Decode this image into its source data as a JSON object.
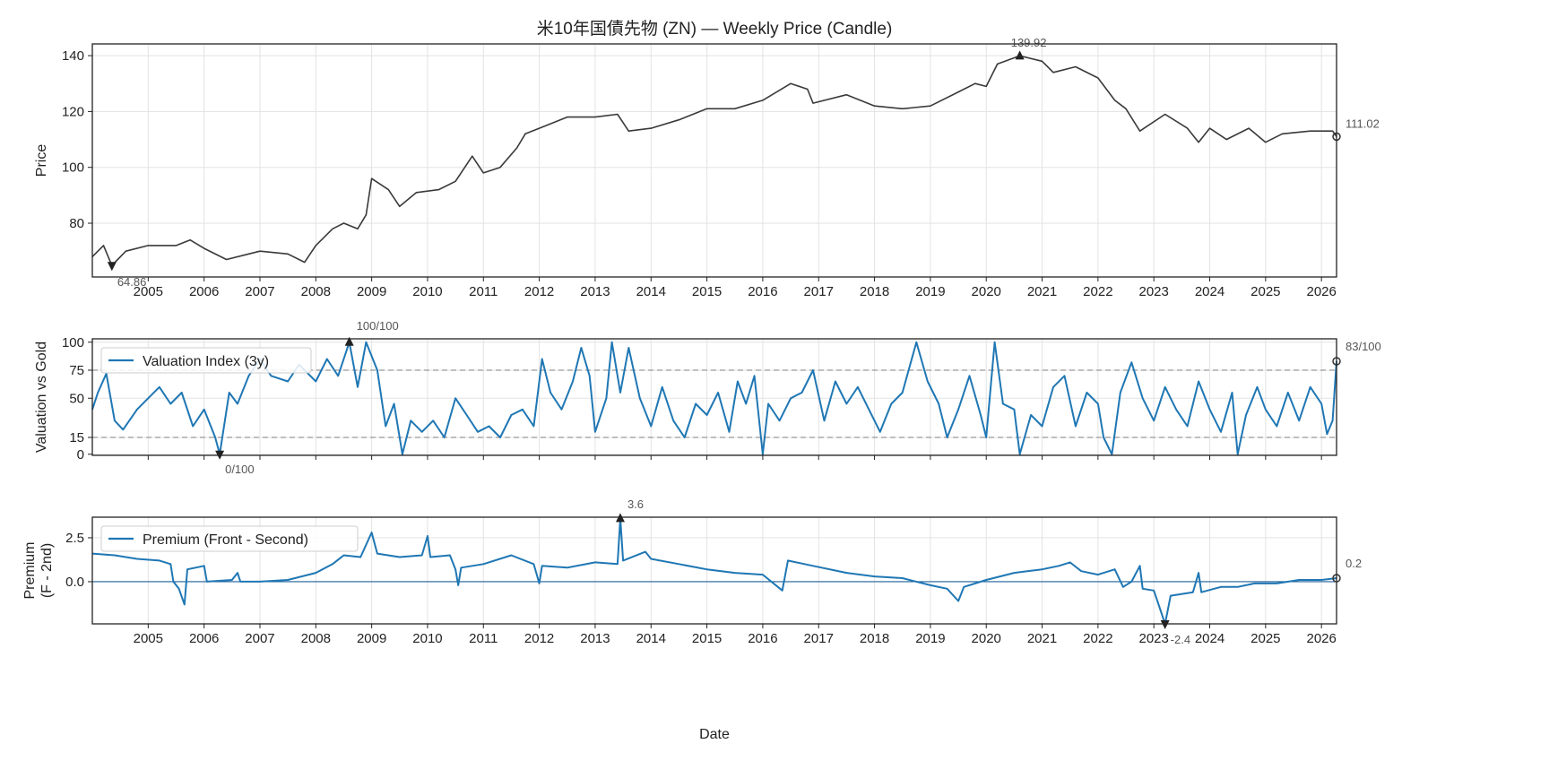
{
  "chart_data": [
    {
      "type": "line",
      "title": "米10年国債先物 (ZN) — Weekly Price (Candle)",
      "ylabel": "Price",
      "xlabel": "",
      "xlim": [
        2004.0,
        2026.27
      ],
      "ylim": [
        60.75,
        144.2
      ],
      "yticks": [
        80,
        100,
        120,
        140
      ],
      "xticks": [
        "2005",
        "2006",
        "2007",
        "2008",
        "2009",
        "2010",
        "2011",
        "2012",
        "2013",
        "2014",
        "2015",
        "2016",
        "2017",
        "2018",
        "2019",
        "2020",
        "2021",
        "2022",
        "2023",
        "2024",
        "2025",
        "2026"
      ],
      "grid": true,
      "color": "#3a3a3a",
      "annotations": {
        "max": {
          "x": 2020.6,
          "y": 139.92,
          "label": "139.92"
        },
        "min": {
          "x": 2004.35,
          "y": 64.86,
          "label": "64.86"
        },
        "last": {
          "x": 2026.27,
          "y": 111.02,
          "label": "111.02"
        }
      },
      "points": [
        [
          2004.0,
          68
        ],
        [
          2004.1,
          70
        ],
        [
          2004.2,
          72
        ],
        [
          2004.35,
          64.86
        ],
        [
          2004.6,
          70
        ],
        [
          2005.0,
          72
        ],
        [
          2005.5,
          72
        ],
        [
          2005.75,
          74
        ],
        [
          2006.0,
          71
        ],
        [
          2006.4,
          67
        ],
        [
          2006.8,
          69
        ],
        [
          2007.0,
          70
        ],
        [
          2007.5,
          69
        ],
        [
          2007.8,
          66
        ],
        [
          2008.0,
          72
        ],
        [
          2008.3,
          78
        ],
        [
          2008.5,
          80
        ],
        [
          2008.75,
          78
        ],
        [
          2008.9,
          83
        ],
        [
          2009.0,
          96
        ],
        [
          2009.3,
          92
        ],
        [
          2009.5,
          86
        ],
        [
          2009.8,
          91
        ],
        [
          2010.2,
          92
        ],
        [
          2010.5,
          95
        ],
        [
          2010.8,
          104
        ],
        [
          2011.0,
          98
        ],
        [
          2011.3,
          100
        ],
        [
          2011.6,
          107
        ],
        [
          2011.75,
          112
        ],
        [
          2012.0,
          114
        ],
        [
          2012.5,
          118
        ],
        [
          2013.0,
          118
        ],
        [
          2013.4,
          119
        ],
        [
          2013.6,
          113
        ],
        [
          2014.0,
          114
        ],
        [
          2014.5,
          117
        ],
        [
          2015.0,
          121
        ],
        [
          2015.5,
          121
        ],
        [
          2016.0,
          124
        ],
        [
          2016.5,
          130
        ],
        [
          2016.8,
          128
        ],
        [
          2016.9,
          123
        ],
        [
          2017.5,
          126
        ],
        [
          2018.0,
          122
        ],
        [
          2018.5,
          121
        ],
        [
          2019.0,
          122
        ],
        [
          2019.5,
          127
        ],
        [
          2019.8,
          130
        ],
        [
          2020.0,
          129
        ],
        [
          2020.2,
          137
        ],
        [
          2020.6,
          139.92
        ],
        [
          2021.0,
          138
        ],
        [
          2021.2,
          134
        ],
        [
          2021.6,
          136
        ],
        [
          2022.0,
          132
        ],
        [
          2022.3,
          124
        ],
        [
          2022.5,
          121
        ],
        [
          2022.75,
          113
        ],
        [
          2023.2,
          119
        ],
        [
          2023.6,
          114
        ],
        [
          2023.8,
          109
        ],
        [
          2024.0,
          114
        ],
        [
          2024.3,
          110
        ],
        [
          2024.7,
          114
        ],
        [
          2025.0,
          109
        ],
        [
          2025.3,
          112
        ],
        [
          2025.8,
          113
        ],
        [
          2026.2,
          113
        ],
        [
          2026.27,
          111.02
        ]
      ]
    },
    {
      "type": "line",
      "ylabel": "Valuation vs Gold",
      "legend": "Valuation Index (3y)",
      "legend_position": "upper-left",
      "xlim": [
        2004.0,
        2026.27
      ],
      "ylim": [
        -1,
        103
      ],
      "yticks": [
        0,
        15,
        50,
        75,
        100
      ],
      "hlines": [
        15,
        75
      ],
      "grid": true,
      "color": "#1f77b4",
      "annotations": {
        "max": {
          "x": 2008.6,
          "y": 100,
          "label": "100/100"
        },
        "min": {
          "x": 2006.28,
          "y": 0,
          "label": "0/100"
        },
        "last": {
          "x": 2026.27,
          "y": 83,
          "label": "83/100"
        }
      },
      "points": [
        [
          2004.0,
          40
        ],
        [
          2004.1,
          55
        ],
        [
          2004.25,
          72
        ],
        [
          2004.4,
          30
        ],
        [
          2004.55,
          22
        ],
        [
          2004.8,
          40
        ],
        [
          2005.0,
          50
        ],
        [
          2005.2,
          60
        ],
        [
          2005.4,
          45
        ],
        [
          2005.6,
          55
        ],
        [
          2005.8,
          25
        ],
        [
          2006.0,
          40
        ],
        [
          2006.2,
          15
        ],
        [
          2006.28,
          0
        ],
        [
          2006.45,
          55
        ],
        [
          2006.6,
          45
        ],
        [
          2006.8,
          70
        ],
        [
          2007.0,
          85
        ],
        [
          2007.2,
          70
        ],
        [
          2007.5,
          65
        ],
        [
          2007.7,
          80
        ],
        [
          2008.0,
          65
        ],
        [
          2008.2,
          85
        ],
        [
          2008.4,
          70
        ],
        [
          2008.6,
          100
        ],
        [
          2008.75,
          60
        ],
        [
          2008.9,
          100
        ],
        [
          2009.1,
          75
        ],
        [
          2009.25,
          25
        ],
        [
          2009.4,
          45
        ],
        [
          2009.55,
          0
        ],
        [
          2009.7,
          30
        ],
        [
          2009.9,
          20
        ],
        [
          2010.1,
          30
        ],
        [
          2010.3,
          15
        ],
        [
          2010.5,
          50
        ],
        [
          2010.7,
          35
        ],
        [
          2010.9,
          20
        ],
        [
          2011.1,
          25
        ],
        [
          2011.3,
          15
        ],
        [
          2011.5,
          35
        ],
        [
          2011.7,
          40
        ],
        [
          2011.9,
          25
        ],
        [
          2012.05,
          85
        ],
        [
          2012.2,
          55
        ],
        [
          2012.4,
          40
        ],
        [
          2012.6,
          65
        ],
        [
          2012.75,
          95
        ],
        [
          2012.9,
          70
        ],
        [
          2013.0,
          20
        ],
        [
          2013.2,
          50
        ],
        [
          2013.3,
          100
        ],
        [
          2013.45,
          55
        ],
        [
          2013.6,
          95
        ],
        [
          2013.8,
          50
        ],
        [
          2014.0,
          25
        ],
        [
          2014.2,
          60
        ],
        [
          2014.4,
          30
        ],
        [
          2014.6,
          15
        ],
        [
          2014.8,
          45
        ],
        [
          2015.0,
          35
        ],
        [
          2015.2,
          55
        ],
        [
          2015.4,
          20
        ],
        [
          2015.55,
          65
        ],
        [
          2015.7,
          45
        ],
        [
          2015.85,
          70
        ],
        [
          2016.0,
          0
        ],
        [
          2016.1,
          45
        ],
        [
          2016.3,
          30
        ],
        [
          2016.5,
          50
        ],
        [
          2016.7,
          55
        ],
        [
          2016.9,
          75
        ],
        [
          2017.1,
          30
        ],
        [
          2017.3,
          65
        ],
        [
          2017.5,
          45
        ],
        [
          2017.7,
          60
        ],
        [
          2017.9,
          40
        ],
        [
          2018.1,
          20
        ],
        [
          2018.3,
          45
        ],
        [
          2018.5,
          55
        ],
        [
          2018.75,
          100
        ],
        [
          2018.95,
          65
        ],
        [
          2019.15,
          45
        ],
        [
          2019.3,
          15
        ],
        [
          2019.5,
          40
        ],
        [
          2019.7,
          70
        ],
        [
          2019.9,
          35
        ],
        [
          2020.0,
          15
        ],
        [
          2020.15,
          100
        ],
        [
          2020.3,
          45
        ],
        [
          2020.5,
          40
        ],
        [
          2020.6,
          0
        ],
        [
          2020.8,
          35
        ],
        [
          2021.0,
          25
        ],
        [
          2021.2,
          60
        ],
        [
          2021.4,
          70
        ],
        [
          2021.6,
          25
        ],
        [
          2021.8,
          55
        ],
        [
          2022.0,
          45
        ],
        [
          2022.1,
          15
        ],
        [
          2022.25,
          0
        ],
        [
          2022.4,
          55
        ],
        [
          2022.6,
          82
        ],
        [
          2022.8,
          50
        ],
        [
          2023.0,
          30
        ],
        [
          2023.2,
          60
        ],
        [
          2023.4,
          40
        ],
        [
          2023.6,
          25
        ],
        [
          2023.8,
          65
        ],
        [
          2024.0,
          40
        ],
        [
          2024.2,
          20
        ],
        [
          2024.4,
          55
        ],
        [
          2024.5,
          0
        ],
        [
          2024.65,
          35
        ],
        [
          2024.85,
          60
        ],
        [
          2025.0,
          40
        ],
        [
          2025.2,
          25
        ],
        [
          2025.4,
          55
        ],
        [
          2025.6,
          30
        ],
        [
          2025.8,
          60
        ],
        [
          2026.0,
          45
        ],
        [
          2026.1,
          18
        ],
        [
          2026.2,
          30
        ],
        [
          2026.27,
          83
        ]
      ]
    },
    {
      "type": "line",
      "ylabel": "Premium\n(F - 2nd)",
      "ylabel_lines": [
        "Premium",
        "(F - 2nd)"
      ],
      "xlabel": "Date",
      "legend": "Premium (Front - Second)",
      "legend_position": "upper-left",
      "xlim": [
        2004.0,
        2026.27
      ],
      "ylim": [
        -2.4,
        3.67
      ],
      "yticks": [
        0.0,
        2.5
      ],
      "ytick_labels": [
        "0.0",
        "2.5"
      ],
      "xticks": [
        "2005",
        "2006",
        "2007",
        "2008",
        "2009",
        "2010",
        "2011",
        "2012",
        "2013",
        "2014",
        "2015",
        "2016",
        "2017",
        "2018",
        "2019",
        "2020",
        "2021",
        "2022",
        "2023",
        "2024",
        "2025",
        "2026"
      ],
      "hlines": [
        0
      ],
      "grid": true,
      "color": "#1f77b4",
      "annotations": {
        "max": {
          "x": 2013.45,
          "y": 3.6,
          "label": "3.6"
        },
        "min": {
          "x": 2023.2,
          "y": -2.4,
          "label": "-2.4"
        },
        "last": {
          "x": 2026.27,
          "y": 0.2,
          "label": "0.2"
        }
      },
      "points": [
        [
          2004.0,
          1.6
        ],
        [
          2004.4,
          1.5
        ],
        [
          2004.8,
          1.3
        ],
        [
          2005.2,
          1.2
        ],
        [
          2005.4,
          1.0
        ],
        [
          2005.45,
          0.0
        ],
        [
          2005.55,
          -0.4
        ],
        [
          2005.65,
          -1.3
        ],
        [
          2005.7,
          0.7
        ],
        [
          2006.0,
          0.9
        ],
        [
          2006.05,
          0.0
        ],
        [
          2006.5,
          0.1
        ],
        [
          2006.6,
          0.5
        ],
        [
          2006.65,
          0.0
        ],
        [
          2007.0,
          0.0
        ],
        [
          2007.5,
          0.1
        ],
        [
          2008.0,
          0.5
        ],
        [
          2008.3,
          1.0
        ],
        [
          2008.5,
          1.5
        ],
        [
          2008.8,
          1.4
        ],
        [
          2009.0,
          2.8
        ],
        [
          2009.1,
          1.6
        ],
        [
          2009.5,
          1.4
        ],
        [
          2009.9,
          1.5
        ],
        [
          2010.0,
          2.6
        ],
        [
          2010.05,
          1.4
        ],
        [
          2010.4,
          1.5
        ],
        [
          2010.5,
          0.7
        ],
        [
          2010.55,
          -0.2
        ],
        [
          2010.6,
          0.8
        ],
        [
          2011.0,
          1.0
        ],
        [
          2011.5,
          1.5
        ],
        [
          2011.9,
          1.0
        ],
        [
          2012.0,
          -0.1
        ],
        [
          2012.05,
          0.9
        ],
        [
          2012.5,
          0.8
        ],
        [
          2013.0,
          1.1
        ],
        [
          2013.4,
          1.0
        ],
        [
          2013.45,
          3.6
        ],
        [
          2013.5,
          1.2
        ],
        [
          2013.9,
          1.7
        ],
        [
          2014.0,
          1.3
        ],
        [
          2014.5,
          1.0
        ],
        [
          2015.0,
          0.7
        ],
        [
          2015.5,
          0.5
        ],
        [
          2016.0,
          0.4
        ],
        [
          2016.35,
          -0.5
        ],
        [
          2016.45,
          1.2
        ],
        [
          2016.9,
          0.9
        ],
        [
          2017.5,
          0.5
        ],
        [
          2018.0,
          0.3
        ],
        [
          2018.5,
          0.2
        ],
        [
          2019.0,
          -0.2
        ],
        [
          2019.3,
          -0.4
        ],
        [
          2019.5,
          -1.1
        ],
        [
          2019.6,
          -0.3
        ],
        [
          2020.0,
          0.1
        ],
        [
          2020.5,
          0.5
        ],
        [
          2021.0,
          0.7
        ],
        [
          2021.3,
          0.9
        ],
        [
          2021.5,
          1.1
        ],
        [
          2021.7,
          0.6
        ],
        [
          2022.0,
          0.4
        ],
        [
          2022.3,
          0.7
        ],
        [
          2022.45,
          -0.3
        ],
        [
          2022.6,
          0.0
        ],
        [
          2022.75,
          0.9
        ],
        [
          2022.8,
          -0.4
        ],
        [
          2023.0,
          -0.5
        ],
        [
          2023.2,
          -2.4
        ],
        [
          2023.3,
          -0.8
        ],
        [
          2023.7,
          -0.6
        ],
        [
          2023.8,
          0.5
        ],
        [
          2023.85,
          -0.6
        ],
        [
          2024.2,
          -0.3
        ],
        [
          2024.5,
          -0.3
        ],
        [
          2024.8,
          -0.1
        ],
        [
          2025.2,
          -0.1
        ],
        [
          2025.6,
          0.1
        ],
        [
          2026.0,
          0.1
        ],
        [
          2026.27,
          0.2
        ]
      ]
    }
  ]
}
